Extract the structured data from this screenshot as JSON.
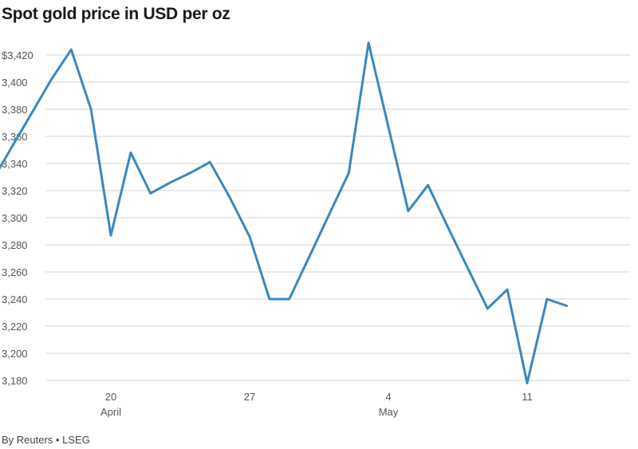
{
  "chart_data": {
    "type": "line",
    "title": "Spot gold price in USD per oz",
    "source": "By Reuters • LSEG",
    "y_tick_labels": [
      "$3,420",
      "3,400",
      "3,380",
      "3,360",
      "3,340",
      "3,320",
      "3,300",
      "3,280",
      "3,260",
      "3,240",
      "3,220",
      "3,200",
      "3,180"
    ],
    "y_ticks": [
      3420,
      3400,
      3380,
      3360,
      3340,
      3320,
      3300,
      3280,
      3260,
      3240,
      3220,
      3200,
      3180
    ],
    "ylim": [
      3174,
      3430
    ],
    "x_ticks": [
      {
        "day": 20,
        "label": "20",
        "month": "April"
      },
      {
        "day": 27,
        "label": "27",
        "month": ""
      },
      {
        "day": 34,
        "label": "4",
        "month": "May"
      },
      {
        "day": 41,
        "label": "11",
        "month": ""
      }
    ],
    "xlim": [
      13,
      45
    ],
    "grid": true,
    "color": "#3a87c0",
    "series": [
      {
        "points": [
          {
            "date": "2025-04-14",
            "x": 14,
            "y": 3327
          },
          {
            "date": "2025-04-15",
            "x": 15,
            "y": 3352
          },
          {
            "date": "2025-04-16",
            "x": 16,
            "y": 3377
          },
          {
            "date": "2025-04-17",
            "x": 17,
            "y": 3402
          },
          {
            "date": "2025-04-18",
            "x": 18,
            "y": 3424
          },
          {
            "date": "2025-04-19",
            "x": 19,
            "y": 3380
          },
          {
            "date": "2025-04-20",
            "x": 20,
            "y": 3287
          },
          {
            "date": "2025-04-21",
            "x": 21,
            "y": 3348
          },
          {
            "date": "2025-04-22",
            "x": 22,
            "y": 3318
          },
          {
            "date": "2025-04-23",
            "x": 23,
            "y": 3326
          },
          {
            "date": "2025-04-24",
            "x": 24,
            "y": 3333
          },
          {
            "date": "2025-04-25",
            "x": 25,
            "y": 3341
          },
          {
            "date": "2025-04-26",
            "x": 26,
            "y": 3315
          },
          {
            "date": "2025-04-27",
            "x": 27,
            "y": 3286
          },
          {
            "date": "2025-04-28",
            "x": 28,
            "y": 3240
          },
          {
            "date": "2025-04-29",
            "x": 29,
            "y": 3240
          },
          {
            "date": "2025-04-30",
            "x": 30,
            "y": 3271
          },
          {
            "date": "2025-05-01",
            "x": 31,
            "y": 3302
          },
          {
            "date": "2025-05-02",
            "x": 32,
            "y": 3333
          },
          {
            "date": "2025-05-03",
            "x": 33,
            "y": 3429
          },
          {
            "date": "2025-05-04",
            "x": 34,
            "y": 3367
          },
          {
            "date": "2025-05-05",
            "x": 35,
            "y": 3305
          },
          {
            "date": "2025-05-06",
            "x": 36,
            "y": 3324
          },
          {
            "date": "2025-05-07",
            "x": 37,
            "y": 3293
          },
          {
            "date": "2025-05-08",
            "x": 38,
            "y": 3263
          },
          {
            "date": "2025-05-09",
            "x": 39,
            "y": 3233
          },
          {
            "date": "2025-05-10",
            "x": 40,
            "y": 3247
          },
          {
            "date": "2025-05-11",
            "x": 41,
            "y": 3178
          },
          {
            "date": "2025-05-12",
            "x": 42,
            "y": 3240
          },
          {
            "date": "2025-05-13",
            "x": 43,
            "y": 3235
          }
        ]
      }
    ]
  }
}
